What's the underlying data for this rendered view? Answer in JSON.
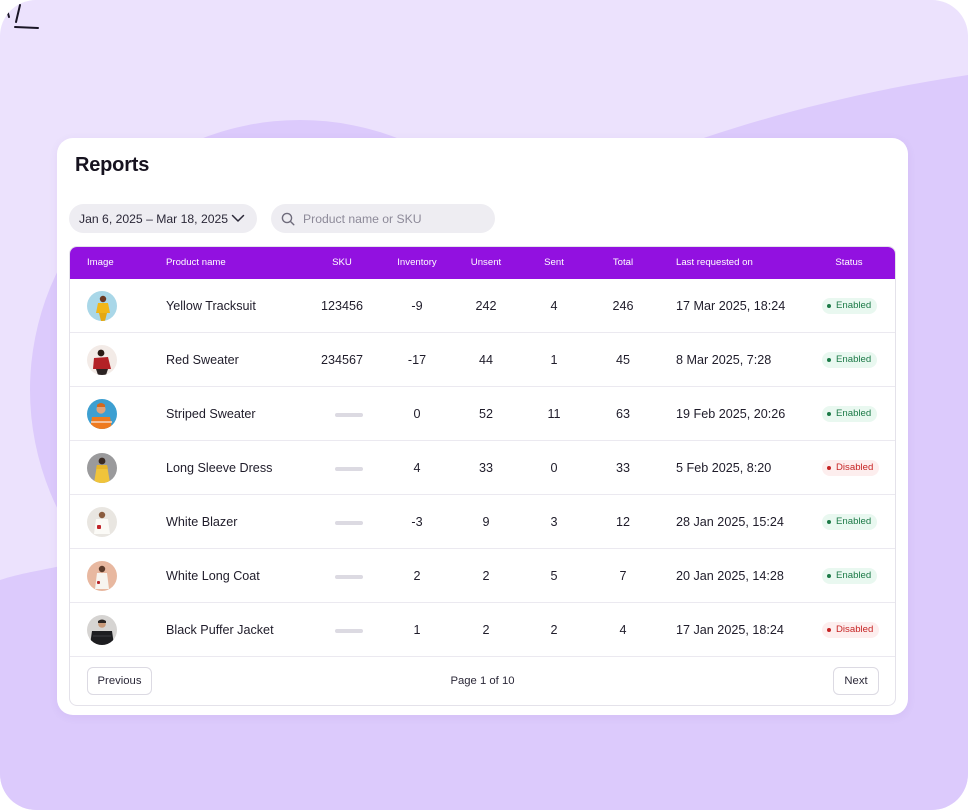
{
  "colors": {
    "accent": "#9211e0",
    "background": "#ece2fd",
    "background_shape": "#dccafc",
    "enabled_bg": "#e9f8f0",
    "enabled_text": "#1c7a47",
    "disabled_bg": "#fdeeee",
    "disabled_text": "#c62424"
  },
  "page": {
    "title": "Reports"
  },
  "filters": {
    "date_range": "Jan 6, 2025 – Mar 18, 2025",
    "date_icon": "chevron-down-icon",
    "search_placeholder": "Product name or SKU",
    "search_value": "",
    "search_icon": "search-icon"
  },
  "table": {
    "columns": {
      "image": "Image",
      "product_name": "Product name",
      "sku": "SKU",
      "inventory": "Inventory",
      "unsent": "Unsent",
      "sent": "Sent",
      "total": "Total",
      "last_requested": "Last requested on",
      "status": "Status"
    },
    "rows": [
      {
        "name": "Yellow Tracksuit",
        "sku": "123456",
        "inventory": "-9",
        "unsent": "242",
        "sent": "4",
        "total": "246",
        "last_requested": "17 Mar 2025, 18:24",
        "status": "Enabled",
        "status_key": "enabled",
        "avatar": "yellow-tracksuit-product-image"
      },
      {
        "name": "Red Sweater",
        "sku": "234567",
        "inventory": "-17",
        "unsent": "44",
        "sent": "1",
        "total": "45",
        "last_requested": "8 Mar 2025, 7:28",
        "status": "Enabled",
        "status_key": "enabled",
        "avatar": "red-sweater-product-image"
      },
      {
        "name": "Striped Sweater",
        "sku": "",
        "inventory": "0",
        "unsent": "52",
        "sent": "11",
        "total": "63",
        "last_requested": "19 Feb 2025, 20:26",
        "status": "Enabled",
        "status_key": "enabled",
        "avatar": "striped-sweater-product-image"
      },
      {
        "name": "Long Sleeve Dress",
        "sku": "",
        "inventory": "4",
        "unsent": "33",
        "sent": "0",
        "total": "33",
        "last_requested": "5 Feb 2025, 8:20",
        "status": "Disabled",
        "status_key": "disabled",
        "avatar": "long-sleeve-dress-product-image"
      },
      {
        "name": "White Blazer",
        "sku": "",
        "inventory": "-3",
        "unsent": "9",
        "sent": "3",
        "total": "12",
        "last_requested": "28 Jan 2025, 15:24",
        "status": "Enabled",
        "status_key": "enabled",
        "avatar": "white-blazer-product-image"
      },
      {
        "name": "White Long Coat",
        "sku": "",
        "inventory": "2",
        "unsent": "2",
        "sent": "5",
        "total": "7",
        "last_requested": "20 Jan 2025, 14:28",
        "status": "Enabled",
        "status_key": "enabled",
        "avatar": "white-long-coat-product-image"
      },
      {
        "name": "Black Puffer Jacket",
        "sku": "",
        "inventory": "1",
        "unsent": "2",
        "sent": "2",
        "total": "4",
        "last_requested": "17 Jan 2025, 18:24",
        "status": "Disabled",
        "status_key": "disabled",
        "avatar": "black-puffer-jacket-product-image"
      }
    ]
  },
  "pagination": {
    "previous_label": "Previous",
    "next_label": "Next",
    "page_info": "Page 1 of 10"
  }
}
